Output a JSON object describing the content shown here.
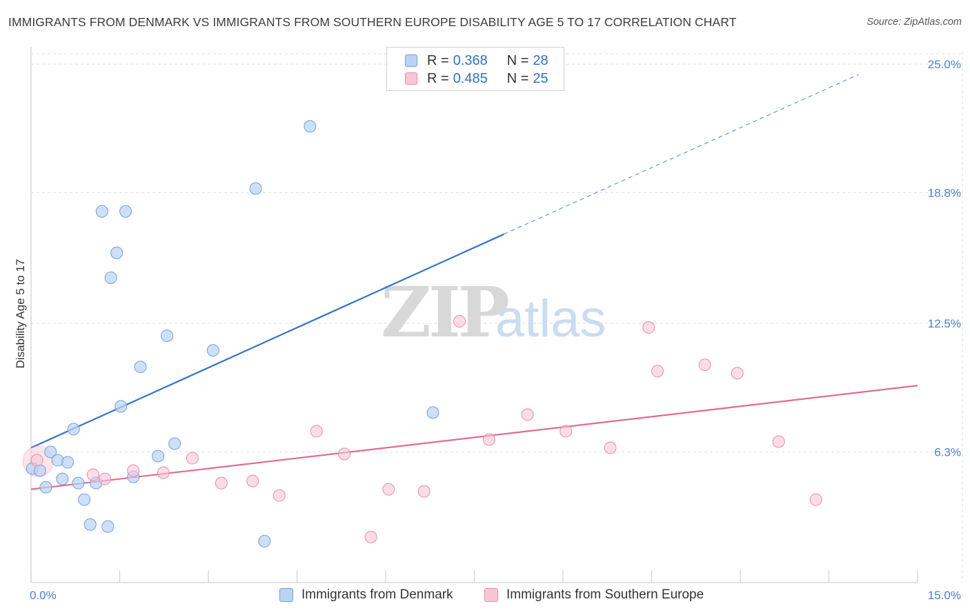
{
  "header": {
    "title": "IMMIGRANTS FROM DENMARK VS IMMIGRANTS FROM SOUTHERN EUROPE DISABILITY AGE 5 TO 17 CORRELATION CHART",
    "source": "Source: ZipAtlas.com"
  },
  "watermark": {
    "zip": "ZIP",
    "atlas": "atlas"
  },
  "legend": {
    "rows": [
      {
        "r_label": "R =",
        "r_value": "0.368",
        "n_label": "N =",
        "n_value": "28"
      },
      {
        "r_label": "R =",
        "r_value": "0.485",
        "n_label": "N =",
        "n_value": "25"
      }
    ]
  },
  "bottom_legend": {
    "series1": "Immigrants from Denmark",
    "series2": "Immigrants from Southern Europe"
  },
  "colors": {
    "blue_fill": "#b9d3f3",
    "blue_stroke": "#6f9fdc",
    "blue_line": "#2e73cc",
    "pink_fill": "#f7c6d5",
    "pink_stroke": "#e88aaa",
    "pink_line": "#e06a94",
    "grid": "#dedede",
    "axis_label": "#4a7fcf"
  },
  "chart_data": {
    "type": "scatter",
    "title": "IMMIGRANTS FROM DENMARK VS IMMIGRANTS FROM SOUTHERN EUROPE DISABILITY AGE 5 TO 17 CORRELATION CHART",
    "xlabel": "",
    "ylabel": "Disability Age 5 to 17",
    "xlim": [
      0,
      15
    ],
    "ylim": [
      0,
      25.6
    ],
    "x_tick_labels": [
      "0.0%",
      "15.0%"
    ],
    "y_ticks": [
      6.3,
      12.5,
      18.8,
      25.0
    ],
    "y_tick_labels": [
      "6.3%",
      "12.5%",
      "18.8%",
      "25.0%"
    ],
    "series": [
      {
        "name": "Immigrants from Denmark",
        "points": [
          {
            "x": 0.02,
            "y": 5.5
          },
          {
            "x": 0.15,
            "y": 5.4
          },
          {
            "x": 0.25,
            "y": 4.6
          },
          {
            "x": 0.33,
            "y": 6.3
          },
          {
            "x": 0.45,
            "y": 5.9
          },
          {
            "x": 0.53,
            "y": 5.0
          },
          {
            "x": 0.62,
            "y": 5.8
          },
          {
            "x": 0.72,
            "y": 7.4
          },
          {
            "x": 0.8,
            "y": 4.8
          },
          {
            "x": 0.9,
            "y": 4.0
          },
          {
            "x": 1.0,
            "y": 2.8
          },
          {
            "x": 1.1,
            "y": 4.8
          },
          {
            "x": 1.2,
            "y": 17.9
          },
          {
            "x": 1.3,
            "y": 2.7
          },
          {
            "x": 1.35,
            "y": 14.7
          },
          {
            "x": 1.45,
            "y": 15.9
          },
          {
            "x": 1.52,
            "y": 8.5
          },
          {
            "x": 1.6,
            "y": 17.9
          },
          {
            "x": 1.73,
            "y": 5.1
          },
          {
            "x": 1.85,
            "y": 10.4
          },
          {
            "x": 2.15,
            "y": 6.1
          },
          {
            "x": 2.3,
            "y": 11.9
          },
          {
            "x": 2.43,
            "y": 6.7
          },
          {
            "x": 3.08,
            "y": 11.2
          },
          {
            "x": 3.8,
            "y": 19.0
          },
          {
            "x": 3.95,
            "y": 2.0
          },
          {
            "x": 4.72,
            "y": 22.0
          },
          {
            "x": 6.8,
            "y": 8.2
          }
        ],
        "trend": {
          "x0": 0,
          "y0": 6.5,
          "x1": 8.0,
          "y1": 16.8,
          "dashed_to_x": 14.0,
          "dashed_to_y": 24.5
        }
      },
      {
        "name": "Immigrants from Southern Europe",
        "points": [
          {
            "x": 0.1,
            "y": 5.9
          },
          {
            "x": 1.05,
            "y": 5.2
          },
          {
            "x": 1.25,
            "y": 5.0
          },
          {
            "x": 1.73,
            "y": 5.4
          },
          {
            "x": 2.24,
            "y": 5.3
          },
          {
            "x": 2.73,
            "y": 6.0
          },
          {
            "x": 3.22,
            "y": 4.8
          },
          {
            "x": 3.75,
            "y": 4.9
          },
          {
            "x": 4.2,
            "y": 4.2
          },
          {
            "x": 4.83,
            "y": 7.3
          },
          {
            "x": 5.3,
            "y": 6.2
          },
          {
            "x": 5.75,
            "y": 2.2
          },
          {
            "x": 6.05,
            "y": 4.5
          },
          {
            "x": 6.65,
            "y": 4.4
          },
          {
            "x": 7.25,
            "y": 12.6
          },
          {
            "x": 7.75,
            "y": 6.9
          },
          {
            "x": 8.4,
            "y": 8.1
          },
          {
            "x": 9.05,
            "y": 7.3
          },
          {
            "x": 9.8,
            "y": 6.5
          },
          {
            "x": 10.45,
            "y": 12.3
          },
          {
            "x": 10.6,
            "y": 10.2
          },
          {
            "x": 11.4,
            "y": 10.5
          },
          {
            "x": 11.95,
            "y": 10.1
          },
          {
            "x": 12.65,
            "y": 6.8
          },
          {
            "x": 13.28,
            "y": 4.0
          }
        ],
        "trend": {
          "x0": 0,
          "y0": 4.5,
          "x1": 15.0,
          "y1": 9.5
        }
      }
    ]
  }
}
